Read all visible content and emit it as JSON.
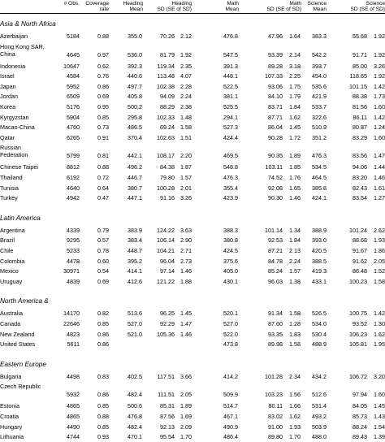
{
  "columns": {
    "obs": "# Obs.",
    "coverage": [
      "Coverage",
      "rate"
    ],
    "read_mean": [
      "Heading",
      "Mean"
    ],
    "read_sd": [
      "Heading",
      "SD   (SE of SD)"
    ],
    "math_mean": [
      "Math",
      "Mean"
    ],
    "math_sd": [
      "Math",
      "SD   (SE of SD)"
    ],
    "sci_mean": [
      "Science",
      "Mean"
    ],
    "sci_sd": [
      "Science",
      "SD   (SE of SD)"
    ]
  },
  "sections": [
    {
      "title": "Asia & North Africa",
      "rows": [
        [
          "Azerbaijan",
          "5184",
          "0.88",
          "355.0",
          "70.26",
          "2.12",
          "476.8",
          "47.96",
          "1.64",
          "383.3",
          "55.68",
          "1.92"
        ],
        [
          "Hong Kong SAR, China",
          "4645",
          "0.97",
          "536.0",
          "81.79",
          "1.92",
          "547.5",
          "93.39",
          "2.14",
          "542.2",
          "91.71",
          "1.92"
        ],
        [
          "Indonesia",
          "10647",
          "0.62",
          "392.3",
          "119.34",
          "2.35",
          "391.3",
          "89.28",
          "3.18",
          "393.7",
          "85.00",
          "3.26"
        ],
        [
          "Israel",
          "4584",
          "0.76",
          "440.6",
          "113.48",
          "4.07",
          "448.1",
          "107.33",
          "2.25",
          "454.0",
          "118.65",
          "1.92"
        ],
        [
          "Japan",
          "5952",
          "0.86",
          "497.7",
          "102.38",
          "2.28",
          "522.5",
          "93.06",
          "1.75",
          "535.6",
          "101.15",
          "1.42"
        ],
        [
          "Jordan",
          "6509",
          "0.69",
          "405.8",
          "94.09",
          "2.24",
          "381.1",
          "84.10",
          "1.79",
          "421.9",
          "88.38",
          "1.73"
        ],
        [
          "Korea",
          "5176",
          "0.95",
          "500.2",
          "88.29",
          "2.38",
          "525.5",
          "83.71",
          "1.84",
          "533.7",
          "81.56",
          "1.60"
        ],
        [
          "Kyrgyzstan",
          "5904",
          "0.85",
          "295.8",
          "102.33",
          "1.48",
          "294.1",
          "87.71",
          "1.62",
          "322.6",
          "86.11",
          "1.42"
        ],
        [
          "Macao-China",
          "4760",
          "0.73",
          "486.5",
          "69.24",
          "1.58",
          "527.3",
          "86.04",
          "1.45",
          "510.9",
          "80.87",
          "1.24"
        ],
        [
          "Qatar",
          "6265",
          "0.91",
          "370.4",
          "102.63",
          "1.51",
          "424.4",
          "90.28",
          "1.72",
          "351.2",
          "83.29",
          "1.60"
        ],
        [
          "Russian Federation",
          "5799",
          "0.81",
          "442.1",
          "108.17",
          "2.20",
          "469.5",
          "90.35",
          "1.89",
          "476.3",
          "83.56",
          "1.47"
        ],
        [
          "Chinese Taipei",
          "8812",
          "0.88",
          "496.2",
          "84.38",
          "1.87",
          "548.8",
          "103.11",
          "1.85",
          "534.5",
          "94.06",
          "1.44"
        ],
        [
          "Thailand",
          "6192",
          "0.72",
          "446.7",
          "79.80",
          "1.57",
          "476.3",
          "74.52",
          "1.76",
          "464.5",
          "83.20",
          "1.46"
        ],
        [
          "Tunisia",
          "4640",
          "0.64",
          "380.7",
          "100.28",
          "2.01",
          "355.4",
          "92.08",
          "1.65",
          "385.8",
          "82.43",
          "1.61"
        ],
        [
          "Turkey",
          "4942",
          "0.47",
          "447.1",
          "91.16",
          "3.26",
          "423.9",
          "90.30",
          "1.46",
          "424.1",
          "83.54",
          "1.27"
        ]
      ]
    },
    {
      "title": "Latin America",
      "rows": [
        [
          "Argentina",
          "4339",
          "0.79",
          "383.9",
          "124.22",
          "3.63",
          "388.3",
          "101.14",
          "1.34",
          "388.9",
          "101.24",
          "2.62"
        ],
        [
          "Brazil",
          "9295",
          "0.57",
          "383.4",
          "106.14",
          "2.90",
          "380.8",
          "92.53",
          "1.84",
          "393.0",
          "88.68",
          "1.93"
        ],
        [
          "Chile",
          "5233",
          "0.78",
          "448.7",
          "104.21",
          "2.71",
          "424.5",
          "87.21",
          "2.13",
          "420.5",
          "91.67",
          "1.86"
        ],
        [
          "Colombia",
          "4478",
          "0.60",
          "395.2",
          "96.04",
          "2.73",
          "375.6",
          "84.78",
          "2.24",
          "388.5",
          "91.62",
          "2.05"
        ],
        [
          "Mexico",
          "30971",
          "0.54",
          "414.1",
          "97.14",
          "1.46",
          "405.0",
          "85.24",
          "1.57",
          "419.3",
          "86.48",
          "1.52"
        ],
        [
          "Uruguay",
          "4839",
          "0.69",
          "412.6",
          "121.22",
          "1.88",
          "430.1",
          "96.03",
          "1.38",
          "433.1",
          "100.23",
          "1.58"
        ]
      ]
    },
    {
      "title": "North America &",
      "rows": [
        [
          "Australia",
          "14170",
          "0.82",
          "513.6",
          "96.25",
          "1.45",
          "520.1",
          "91.34",
          "1.58",
          "526.5",
          "100.75",
          "1.42"
        ],
        [
          "Canada",
          "22646",
          "0.85",
          "527.0",
          "92.29",
          "1.47",
          "527.0",
          "87.60",
          "1.28",
          "534.0",
          "93.52",
          "1.30"
        ],
        [
          "New Zealand",
          "4823",
          "0.86",
          "521.0",
          "105.36",
          "1.46",
          "522.0",
          "93.35",
          "1.83",
          "530.4",
          "106.23",
          "1.62"
        ],
        [
          "United States",
          "5611",
          "0.86",
          "",
          "",
          "",
          "473.8",
          "89.98",
          "1.58",
          "488.9",
          "105.81",
          "1.95"
        ]
      ]
    },
    {
      "title": "Eastern Europe",
      "rows": [
        [
          "Bulgaria",
          "4498",
          "0.83",
          "402.5",
          "117.51",
          "3.66",
          "414.2",
          "101.28",
          "2.34",
          "434.2",
          "106.72",
          "3.20"
        ],
        [
          "Czech Republic",
          "5932",
          "0.86",
          "482.4",
          "111.51",
          "2.05",
          "509.9",
          "103.23",
          "1.56",
          "512.6",
          "97.94",
          "1.60"
        ],
        [
          "Estonia",
          "4865",
          "0.85",
          "500.6",
          "85.31",
          "1.89",
          "514.7",
          "80.11",
          "1.66",
          "531.4",
          "84.05",
          "1.45"
        ],
        [
          "Croatia",
          "4865",
          "0.88",
          "476.8",
          "87.56",
          "1.69",
          "467.1",
          "83.02",
          "1.62",
          "493.2",
          "85.73",
          "1.43"
        ],
        [
          "Hungary",
          "4490",
          "0.85",
          "482.4",
          "92.13",
          "2.09",
          "490.9",
          "91.00",
          "1.93",
          "503.9",
          "88.24",
          "1.54"
        ],
        [
          "Lithuania",
          "4744",
          "0.93",
          "470.1",
          "95.54",
          "1.70",
          "486.4",
          "89.80",
          "1.70",
          "488.0",
          "89.43",
          "1.39"
        ]
      ]
    }
  ]
}
